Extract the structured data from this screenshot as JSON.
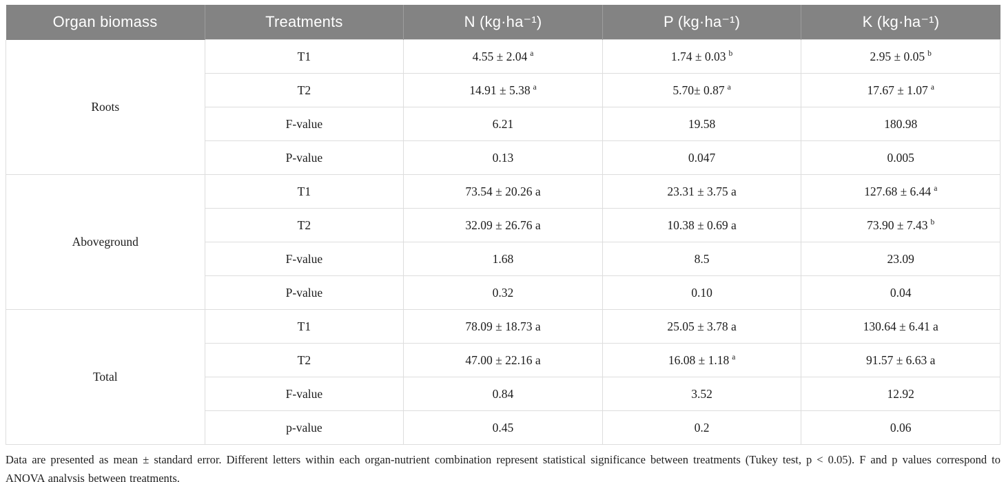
{
  "table": {
    "columns": [
      "Organ biomass",
      "Treatments",
      "N (kg·ha⁻¹)",
      "P (kg·ha⁻¹)",
      "K (kg·ha⁻¹)"
    ],
    "sections": [
      {
        "organ": "Roots",
        "rows": [
          {
            "label": "T1",
            "values": [
              "4.55 ± 2.04|a",
              "1.74 ± 0.03|b",
              "2.95 ± 0.05|b"
            ]
          },
          {
            "label": "T2",
            "values": [
              "14.91 ± 5.38|a",
              "5.70± 0.87|a",
              "17.67 ± 1.07|a"
            ]
          },
          {
            "label": "F-value",
            "values": [
              "6.21",
              "19.58",
              "180.98"
            ]
          },
          {
            "label": "P-value",
            "values": [
              "0.13",
              "0.047",
              "0.005"
            ]
          }
        ]
      },
      {
        "organ": "Aboveground",
        "rows": [
          {
            "label": "T1",
            "values": [
              "73.54 ± 20.26 a",
              "23.31 ± 3.75 a",
              "127.68 ± 6.44|a"
            ]
          },
          {
            "label": "T2",
            "values": [
              "32.09 ± 26.76 a",
              "10.38 ± 0.69 a",
              "73.90 ± 7.43|b"
            ]
          },
          {
            "label": "F-value",
            "values": [
              "1.68",
              "8.5",
              "23.09"
            ]
          },
          {
            "label": "P-value",
            "values": [
              "0.32",
              "0.10",
              "0.04"
            ]
          }
        ]
      },
      {
        "organ": "Total",
        "rows": [
          {
            "label": "T1",
            "values": [
              "78.09 ± 18.73 a",
              "25.05 ± 3.78 a",
              "130.64 ± 6.41 a"
            ]
          },
          {
            "label": "T2",
            "values": [
              "47.00 ± 22.16 a",
              "16.08 ± 1.18|a",
              "91.57 ± 6.63 a"
            ]
          },
          {
            "label": "F-value",
            "values": [
              "0.84",
              "3.52",
              "12.92"
            ]
          },
          {
            "label": "p-value",
            "values": [
              "0.45",
              "0.2",
              "0.06"
            ]
          }
        ]
      }
    ],
    "footnote": "Data are presented as mean ± standard error. Different letters within each organ-nutrient combination represent statistical significance between treatments (Tukey test, p < 0.05). F and p values correspond to ANOVA analysis between treatments."
  },
  "colors": {
    "header_bg": "#838383",
    "header_text": "#ffffff",
    "row_border": "#dddddd",
    "section_border": "#bdbdbd"
  }
}
